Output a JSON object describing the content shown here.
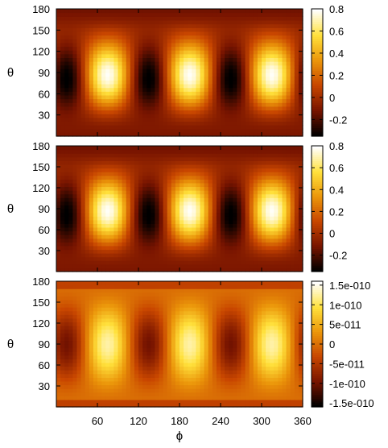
{
  "figure": {
    "panels": [
      {
        "ylabel": "θ",
        "colorbar_ticks": [
          "0.8",
          "0.6",
          "0.4",
          "0.2",
          "0",
          "-0.2"
        ]
      },
      {
        "ylabel": "θ",
        "colorbar_ticks": [
          "0.8",
          "0.6",
          "0.4",
          "0.2",
          "0",
          "-0.2"
        ]
      },
      {
        "ylabel": "θ",
        "colorbar_ticks": [
          "1.5e-010",
          "1e-010",
          "5e-011",
          "0",
          "-5e-011",
          "-1e-010",
          "-1.5e-010"
        ]
      }
    ],
    "xlabel": "ϕ",
    "x_tick_labels": [
      "60",
      "120",
      "180",
      "240",
      "300",
      "360"
    ],
    "y_tick_labels": [
      "30",
      "60",
      "90",
      "120",
      "150",
      "180"
    ]
  },
  "chart_data": [
    {
      "type": "heatmap",
      "xlabel": "",
      "ylabel": "θ",
      "xlim": [
        0,
        360
      ],
      "ylim": [
        0,
        180
      ],
      "x_ticks": [
        60,
        120,
        180,
        240,
        300,
        360
      ],
      "y_ticks": [
        30,
        60,
        90,
        120,
        150,
        180
      ],
      "clim": [
        -0.35,
        0.8
      ],
      "colorbar_ticks": [
        -0.2,
        0,
        0.2,
        0.4,
        0.6,
        0.8
      ],
      "colormap": "black-red-orange-yellow-white",
      "pattern": "periodic in phi with period 120; minima near phi=15, 135, 255 at theta approx 100; maxima near phi=75, 195, 315",
      "grid": false,
      "legend": "colorbar-right"
    },
    {
      "type": "heatmap",
      "xlabel": "",
      "ylabel": "θ",
      "xlim": [
        0,
        360
      ],
      "ylim": [
        0,
        180
      ],
      "x_ticks": [
        60,
        120,
        180,
        240,
        300,
        360
      ],
      "y_ticks": [
        30,
        60,
        90,
        120,
        150,
        180
      ],
      "clim": [
        -0.35,
        0.8
      ],
      "colorbar_ticks": [
        -0.2,
        0,
        0.2,
        0.4,
        0.6,
        0.8
      ],
      "colormap": "black-red-orange-yellow-white",
      "pattern": "periodic in phi with period 120; minima near phi=15, 135, 255 at theta approx 100; maxima near phi=75, 195, 315",
      "grid": false,
      "legend": "colorbar-right"
    },
    {
      "type": "heatmap",
      "xlabel": "ϕ",
      "ylabel": "θ",
      "xlim": [
        0,
        360
      ],
      "ylim": [
        0,
        180
      ],
      "x_ticks": [
        60,
        120,
        180,
        240,
        300,
        360
      ],
      "y_ticks": [
        30,
        60,
        90,
        120,
        150,
        180
      ],
      "clim": [
        -1.6e-10,
        1.6e-10
      ],
      "colorbar_ticks": [
        -1.5e-10,
        -1e-10,
        -5e-11,
        0,
        5e-11,
        1e-10,
        1.5e-10
      ],
      "colormap": "black-red-orange-yellow-white",
      "pattern": "periodic in phi with period 120; minima near phi=15, 135, 255 at theta approx 90; maxima near phi=75, 195, 315",
      "grid": false,
      "legend": "colorbar-right"
    }
  ]
}
